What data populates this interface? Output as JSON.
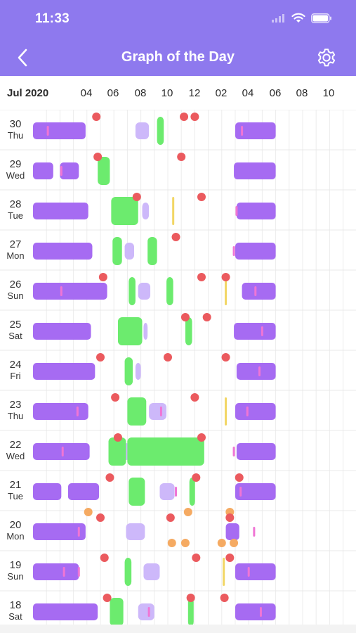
{
  "status": {
    "time": "11:33"
  },
  "header": {
    "title": "Graph of the Day",
    "back_icon": "chevron-left-icon",
    "settings_icon": "gear-icon"
  },
  "timeline": {
    "month": "Jul 2020",
    "hour_ticks": [
      "04",
      "06",
      "08",
      "10",
      "12",
      "02",
      "04",
      "06",
      "08",
      "10"
    ],
    "colors": {
      "sleep": "#A66BF2",
      "sleep_light": "#CDB8FA",
      "activity": "#6CEB6E",
      "marker_red": "#EB5A5E",
      "marker_orange": "#F5AA62",
      "marker_yellow": "#F2D664",
      "wake_tick": "#F075D5",
      "header_bg": "#8E79EE"
    }
  },
  "days": [
    {
      "num": "30",
      "dow": "Thu"
    },
    {
      "num": "29",
      "dow": "Wed"
    },
    {
      "num": "28",
      "dow": "Tue"
    },
    {
      "num": "27",
      "dow": "Mon"
    },
    {
      "num": "26",
      "dow": "Sun"
    },
    {
      "num": "25",
      "dow": "Sat"
    },
    {
      "num": "24",
      "dow": "Fri"
    },
    {
      "num": "23",
      "dow": "Thu"
    },
    {
      "num": "22",
      "dow": "Wed"
    },
    {
      "num": "21",
      "dow": "Tue"
    },
    {
      "num": "20",
      "dow": "Mon"
    },
    {
      "num": "19",
      "dow": "Sun"
    },
    {
      "num": "18",
      "dow": "Sat"
    }
  ],
  "chart_data": {
    "type": "timeline",
    "time_unit": "hours since 03:00 (row start)",
    "rows": [
      {
        "day": "30 Thu",
        "sleep": [
          [
            3.0,
            6.9
          ],
          [
            18.0,
            21.0
          ]
        ],
        "light": [
          [
            10.6,
            11.6
          ]
        ],
        "activity": [
          [
            12.2,
            12.7
          ]
        ],
        "red": [
          7.7,
          14.2,
          15.0
        ],
        "orange": [],
        "yellow": [],
        "ticks": [
          4.1,
          18.5
        ]
      },
      {
        "day": "29 Wed",
        "sleep": [
          [
            3.0,
            4.5
          ],
          [
            5.0,
            6.4
          ],
          [
            17.9,
            21.0
          ]
        ],
        "light": [
          [
            8.0,
            8.4
          ]
        ],
        "activity": [
          [
            7.8,
            8.7
          ]
        ],
        "red": [
          7.8,
          14.0
        ],
        "orange": [],
        "yellow": [],
        "ticks": [
          5.1
        ]
      },
      {
        "day": "28 Tue",
        "sleep": [
          [
            3.0,
            7.1
          ],
          [
            18.1,
            21.0
          ]
        ],
        "light": [
          [
            11.1,
            11.6
          ]
        ],
        "activity": [
          [
            8.8,
            10.8
          ]
        ],
        "red": [
          10.7,
          15.5
        ],
        "orange": [],
        "yellow": [
          [
            13.0,
            13.8
          ]
        ],
        "ticks": [
          18.1
        ]
      },
      {
        "day": "27 Mon",
        "sleep": [
          [
            3.0,
            7.4
          ],
          [
            18.0,
            21.0
          ]
        ],
        "light": [
          [
            9.8,
            10.5
          ]
        ],
        "activity": [
          [
            8.9,
            9.6
          ],
          [
            11.5,
            12.2
          ]
        ],
        "red": [
          13.6
        ],
        "orange": [],
        "yellow": [],
        "ticks": [
          17.9
        ]
      },
      {
        "day": "26 Sun",
        "sleep": [
          [
            3.0,
            8.5
          ],
          [
            18.5,
            21.0
          ]
        ],
        "light": [
          [
            10.8,
            11.7
          ]
        ],
        "activity": [
          [
            10.1,
            10.6
          ],
          [
            12.9,
            13.4
          ]
        ],
        "red": [
          8.2,
          15.5,
          17.3
        ],
        "orange": [],
        "yellow": [
          [
            16.9,
            17.7
          ]
        ],
        "ticks": [
          5.1,
          19.5
        ]
      },
      {
        "day": "25 Sat",
        "sleep": [
          [
            3.0,
            7.3
          ],
          [
            17.9,
            21.0
          ]
        ],
        "light": [
          [
            11.2,
            11.5
          ]
        ],
        "activity": [
          [
            9.3,
            11.1
          ],
          [
            14.3,
            14.8
          ]
        ],
        "red": [
          14.3,
          15.9
        ],
        "orange": [],
        "yellow": [],
        "ticks": [
          20.0
        ]
      },
      {
        "day": "24 Fri",
        "sleep": [
          [
            3.0,
            7.6
          ],
          [
            18.1,
            21.0
          ]
        ],
        "light": [
          [
            10.6,
            11.0
          ]
        ],
        "activity": [
          [
            9.8,
            10.4
          ]
        ],
        "red": [
          8.0,
          13.0,
          17.3
        ],
        "orange": [],
        "yellow": [],
        "ticks": [
          19.8
        ]
      },
      {
        "day": "23 Thu",
        "sleep": [
          [
            3.0,
            7.1
          ],
          [
            18.0,
            21.0
          ]
        ],
        "light": [
          [
            11.6,
            12.9
          ]
        ],
        "activity": [
          [
            10.0,
            11.4
          ]
        ],
        "red": [
          9.1,
          15.0
        ],
        "orange": [],
        "yellow": [
          [
            16.9,
            17.7
          ]
        ],
        "ticks": [
          6.3,
          12.5,
          18.9
        ]
      },
      {
        "day": "22 Wed",
        "sleep": [
          [
            3.0,
            7.2
          ],
          [
            18.1,
            21.0
          ]
        ],
        "light": [
          [
            9.8,
            10.1
          ]
        ],
        "activity": [
          [
            8.6,
            9.9
          ],
          [
            10.0,
            15.7
          ]
        ],
        "red": [
          9.3,
          15.5
        ],
        "orange": [],
        "yellow": [],
        "ticks": [
          5.2,
          17.9
        ]
      },
      {
        "day": "21 Tue",
        "sleep": [
          [
            3.0,
            5.1
          ],
          [
            5.6,
            7.9
          ],
          [
            18.0,
            21.0
          ]
        ],
        "light": [
          [
            12.4,
            13.5
          ]
        ],
        "activity": [
          [
            10.1,
            11.3
          ],
          [
            14.6,
            15.0
          ]
        ],
        "red": [
          8.7,
          15.1,
          18.3
        ],
        "orange": [
          7.1,
          14.5,
          17.6
        ],
        "yellow": [],
        "ticks": [
          13.6,
          18.4
        ]
      },
      {
        "day": "20 Mon",
        "sleep": [
          [
            3.0,
            6.9
          ],
          [
            17.3,
            18.3
          ]
        ],
        "light": [
          [
            9.9,
            11.3
          ]
        ],
        "activity": [],
        "red": [
          8.0,
          13.2,
          17.6
        ],
        "orange": [
          13.3,
          14.3,
          17.0,
          17.9
        ],
        "yellow": [],
        "ticks": [
          6.4,
          19.4
        ]
      },
      {
        "day": "19 Sun",
        "sleep": [
          [
            3.0,
            6.4
          ],
          [
            18.0,
            21.0
          ]
        ],
        "light": [
          [
            11.2,
            12.4
          ]
        ],
        "activity": [
          [
            9.8,
            10.3
          ]
        ],
        "red": [
          8.3,
          15.1,
          17.6
        ],
        "orange": [],
        "yellow": [
          [
            16.8,
            17.5
          ]
        ],
        "ticks": [
          5.3,
          6.4,
          19.0
        ]
      },
      {
        "day": "18 Sat",
        "sleep": [
          [
            3.0,
            7.8
          ],
          [
            18.0,
            21.0
          ]
        ],
        "light": [
          [
            10.8,
            12.0
          ]
        ],
        "activity": [
          [
            8.7,
            9.7
          ],
          [
            14.5,
            14.8
          ]
        ],
        "red": [
          8.5,
          14.7,
          17.2
        ],
        "orange": [],
        "yellow": [],
        "ticks": [
          11.6,
          19.9
        ]
      }
    ]
  }
}
